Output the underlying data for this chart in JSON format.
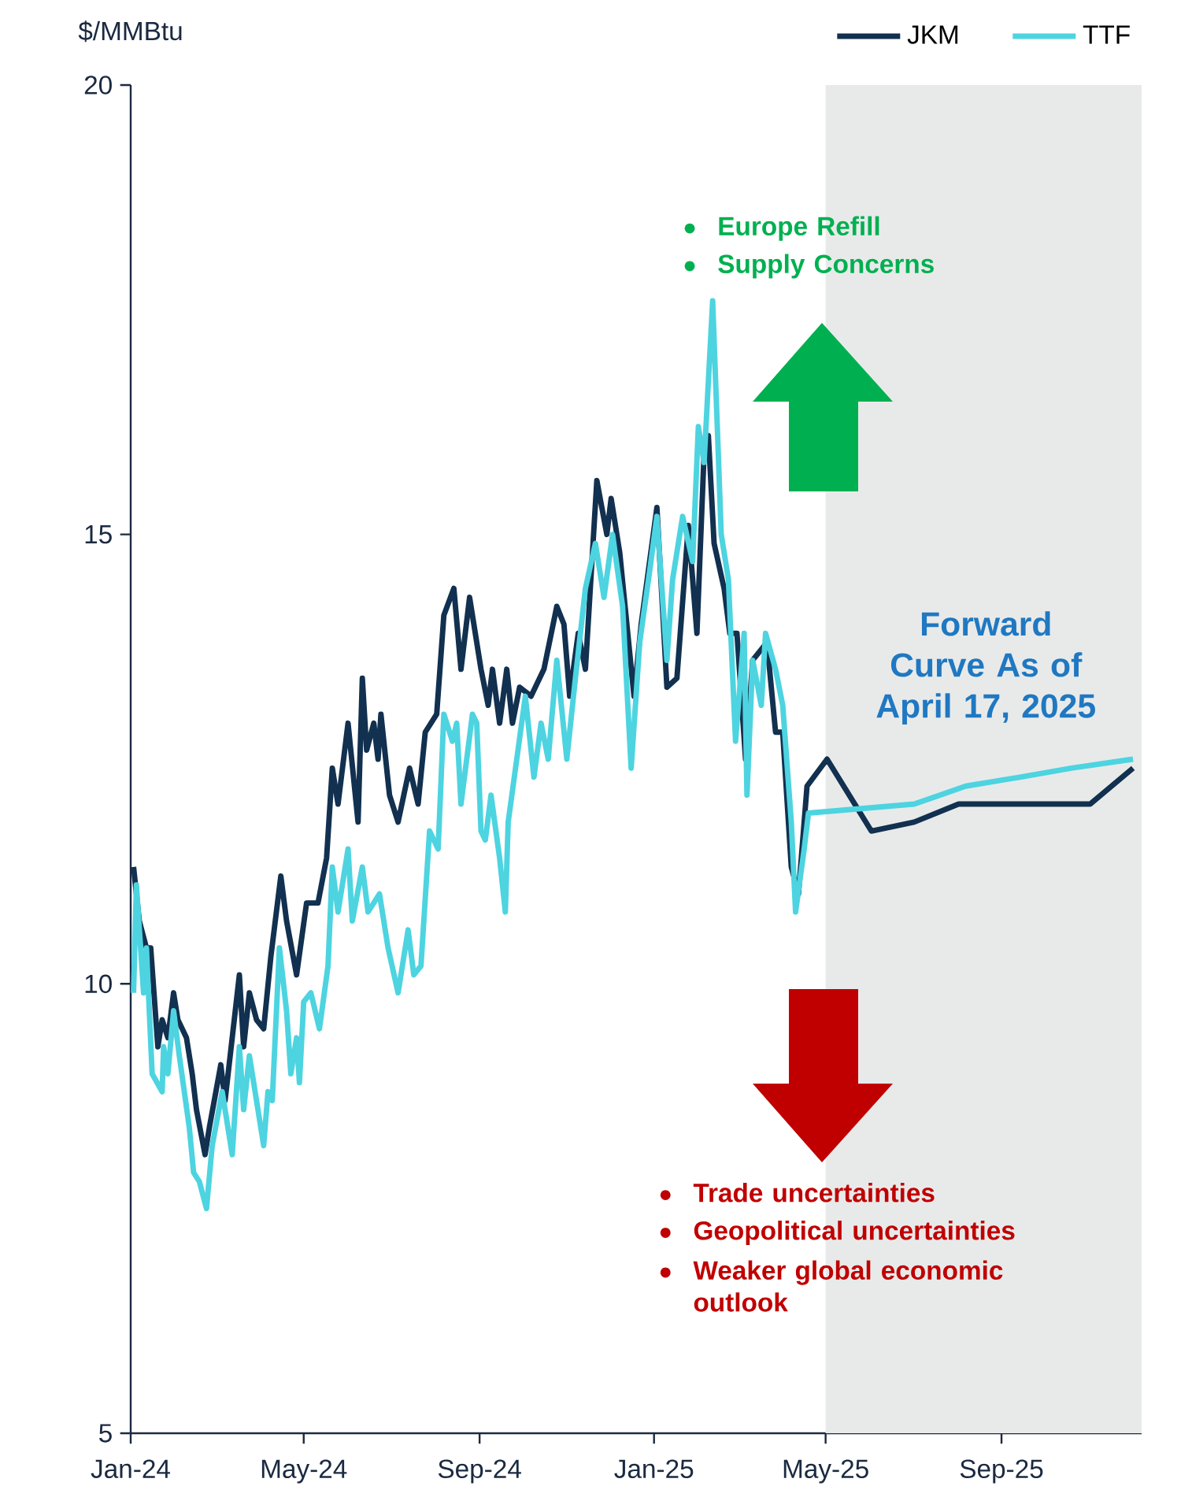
{
  "chart_data": {
    "type": "line",
    "ylabel": "$/MMBtu",
    "xlim": [
      "2024-01-01",
      "2025-12-08"
    ],
    "xticks": [
      {
        "value": "2024-01-01",
        "label": "Jan-24"
      },
      {
        "value": "2024-05-01",
        "label": "May-24"
      },
      {
        "value": "2024-09-01",
        "label": "Sep-24"
      },
      {
        "value": "2025-01-01",
        "label": "Jan-25"
      },
      {
        "value": "2025-05-01",
        "label": "May-25"
      },
      {
        "value": "2025-09-01",
        "label": "Sep-25"
      }
    ],
    "ylim": [
      5,
      20
    ],
    "yticks": [
      5,
      10,
      15,
      20
    ],
    "legend": "top right",
    "bands": [
      {
        "axis": "x",
        "from": "2025-05-01",
        "to": "2025-12-08",
        "color": "#e8eaea"
      }
    ],
    "annotations": [
      "Europe Refill",
      "Supply Concerns",
      "Forward Curve As of April 17, 2025",
      "Trade uncertainties",
      "Geopolitical uncertainties",
      "Weaker global economic outlook"
    ],
    "series": [
      {
        "name": "JKM",
        "color": "#12304f",
        "x": [
          "2024-01-03",
          "2024-01-07",
          "2024-01-12",
          "2024-01-15",
          "2024-01-20",
          "2024-01-23",
          "2024-01-27",
          "2024-01-31",
          "2024-02-03",
          "2024-02-09",
          "2024-02-13",
          "2024-02-16",
          "2024-02-22",
          "2024-02-25",
          "2024-03-04",
          "2024-03-07",
          "2024-03-17",
          "2024-03-20",
          "2024-03-24",
          "2024-03-29",
          "2024-04-03",
          "2024-04-08",
          "2024-04-15",
          "2024-04-19",
          "2024-04-26",
          "2024-05-03",
          "2024-05-11",
          "2024-05-17",
          "2024-05-21",
          "2024-05-25",
          "2024-06-01",
          "2024-06-08",
          "2024-06-11",
          "2024-06-14",
          "2024-06-19",
          "2024-06-22",
          "2024-06-24",
          "2024-06-30",
          "2024-07-06",
          "2024-07-14",
          "2024-07-20",
          "2024-07-25",
          "2024-08-02",
          "2024-08-07",
          "2024-08-14",
          "2024-08-19",
          "2024-08-25",
          "2024-09-02",
          "2024-09-07",
          "2024-09-10",
          "2024-09-15",
          "2024-09-20",
          "2024-09-24",
          "2024-09-29",
          "2024-10-07",
          "2024-10-16",
          "2024-10-25",
          "2024-10-30",
          "2024-11-03",
          "2024-11-09",
          "2024-11-14",
          "2024-11-22",
          "2024-11-29",
          "2024-12-02",
          "2024-12-08",
          "2024-12-18",
          "2024-12-23",
          "2025-01-03",
          "2025-01-10",
          "2025-01-17",
          "2025-01-25",
          "2025-01-31",
          "2025-02-05",
          "2025-02-08",
          "2025-02-12",
          "2025-02-19",
          "2025-02-23",
          "2025-02-28",
          "2025-03-06",
          "2025-03-11",
          "2025-03-21",
          "2025-03-27",
          "2025-04-01",
          "2025-04-07",
          "2025-04-12",
          "2025-04-18",
          "2025-05-02",
          "2025-06-02",
          "2025-07-02",
          "2025-08-02",
          "2025-08-29",
          "2025-09-28",
          "2025-11-02",
          "2025-12-02"
        ],
        "values": [
          11.3,
          10.7,
          10.4,
          10.4,
          9.3,
          9.6,
          9.4,
          9.9,
          9.6,
          9.4,
          9.0,
          8.6,
          8.1,
          8.4,
          9.1,
          8.7,
          10.1,
          9.3,
          9.9,
          9.6,
          9.5,
          10.3,
          11.2,
          10.7,
          10.1,
          10.9,
          10.9,
          11.4,
          12.4,
          12.0,
          12.9,
          11.8,
          13.4,
          12.6,
          12.9,
          12.5,
          13.0,
          12.1,
          11.8,
          12.4,
          12.0,
          12.8,
          13.0,
          14.1,
          14.4,
          13.5,
          14.3,
          13.5,
          13.1,
          13.5,
          12.9,
          13.5,
          12.9,
          13.3,
          13.2,
          13.5,
          14.2,
          14.0,
          13.2,
          13.9,
          13.5,
          15.6,
          15.0,
          15.4,
          14.8,
          13.2,
          14.0,
          15.3,
          13.3,
          13.4,
          15.1,
          13.9,
          15.9,
          16.1,
          14.9,
          14.4,
          13.9,
          13.9,
          12.5,
          13.6,
          13.8,
          12.8,
          12.8,
          11.3,
          11.0,
          12.2,
          12.5,
          11.7,
          11.8,
          12.0,
          12.0,
          12.0,
          12.0,
          12.4
        ]
      },
      {
        "name": "TTF",
        "color": "#4dd4e0",
        "x": [
          "2024-01-03",
          "2024-01-05",
          "2024-01-10",
          "2024-01-12",
          "2024-01-16",
          "2024-01-23",
          "2024-01-24",
          "2024-01-27",
          "2024-01-31",
          "2024-02-04",
          "2024-02-11",
          "2024-02-14",
          "2024-02-18",
          "2024-02-23",
          "2024-02-27",
          "2024-03-05",
          "2024-03-07",
          "2024-03-12",
          "2024-03-17",
          "2024-03-20",
          "2024-03-24",
          "2024-03-28",
          "2024-04-03",
          "2024-04-06",
          "2024-04-09",
          "2024-04-14",
          "2024-04-19",
          "2024-04-22",
          "2024-04-26",
          "2024-04-28",
          "2024-05-01",
          "2024-05-06",
          "2024-05-12",
          "2024-05-18",
          "2024-05-21",
          "2024-05-25",
          "2024-06-01",
          "2024-06-04",
          "2024-06-11",
          "2024-06-15",
          "2024-06-23",
          "2024-06-29",
          "2024-07-06",
          "2024-07-13",
          "2024-07-17",
          "2024-07-22",
          "2024-07-28",
          "2024-08-03",
          "2024-08-07",
          "2024-08-13",
          "2024-08-16",
          "2024-08-19",
          "2024-08-27",
          "2024-08-30",
          "2024-09-02",
          "2024-09-05",
          "2024-09-09",
          "2024-09-15",
          "2024-09-19",
          "2024-09-21",
          "2024-09-27",
          "2024-10-03",
          "2024-10-09",
          "2024-10-14",
          "2024-10-19",
          "2024-10-25",
          "2024-11-01",
          "2024-11-07",
          "2024-11-14",
          "2024-11-21",
          "2024-11-27",
          "2024-12-03",
          "2024-12-10",
          "2024-12-16",
          "2024-12-22",
          "2024-12-29",
          "2025-01-03",
          "2025-01-10",
          "2025-01-14",
          "2025-01-21",
          "2025-01-28",
          "2025-02-01",
          "2025-02-05",
          "2025-02-11",
          "2025-02-17",
          "2025-02-22",
          "2025-02-27",
          "2025-03-05",
          "2025-03-07",
          "2025-03-11",
          "2025-03-17",
          "2025-03-20",
          "2025-03-27",
          "2025-04-01",
          "2025-04-07",
          "2025-04-10",
          "2025-04-16",
          "2025-04-19",
          "2025-07-02",
          "2025-08-07",
          "2025-09-14",
          "2025-10-20",
          "2025-12-02"
        ],
        "values": [
          9.9,
          11.1,
          9.9,
          10.4,
          9.0,
          8.8,
          9.3,
          9.0,
          9.7,
          9.2,
          8.4,
          7.9,
          7.8,
          7.5,
          8.2,
          8.8,
          8.6,
          8.1,
          9.3,
          8.6,
          9.2,
          8.8,
          8.2,
          8.8,
          8.7,
          10.4,
          9.7,
          9.0,
          9.4,
          8.9,
          9.8,
          9.9,
          9.5,
          10.2,
          11.3,
          10.8,
          11.5,
          10.7,
          11.3,
          10.8,
          11.0,
          10.4,
          9.9,
          10.6,
          10.1,
          10.2,
          11.7,
          11.5,
          13.0,
          12.7,
          12.9,
          12.0,
          13.0,
          12.9,
          11.7,
          11.6,
          12.1,
          11.4,
          10.8,
          11.8,
          12.5,
          13.2,
          12.3,
          12.9,
          12.5,
          13.6,
          12.5,
          13.4,
          14.4,
          14.9,
          14.3,
          15.0,
          14.2,
          12.4,
          13.8,
          14.6,
          15.2,
          13.6,
          14.5,
          15.2,
          14.7,
          16.2,
          15.8,
          17.6,
          15.0,
          14.5,
          12.7,
          13.9,
          12.1,
          13.6,
          13.1,
          13.9,
          13.5,
          13.1,
          11.8,
          10.8,
          11.5,
          11.9,
          12.0,
          12.2,
          12.3,
          12.4,
          12.5
        ]
      }
    ]
  }
}
